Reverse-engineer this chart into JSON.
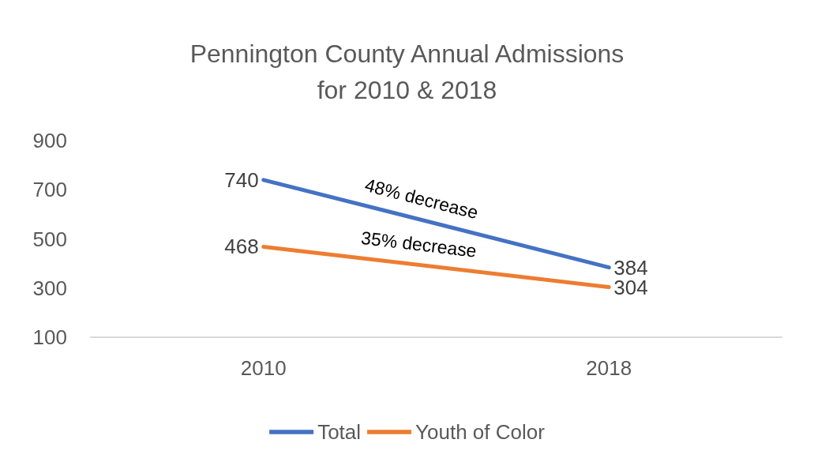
{
  "chart_data": {
    "type": "line",
    "title": "Pennington County Annual Admissions\nfor 2010 & 2018",
    "categories": [
      "2010",
      "2018"
    ],
    "series": [
      {
        "name": "Total",
        "color": "#4472c4",
        "values": [
          740,
          384
        ]
      },
      {
        "name": "Youth of Color",
        "color": "#ed7d31",
        "values": [
          468,
          304
        ]
      }
    ],
    "ylim": [
      100,
      900
    ],
    "yticks": [
      100,
      300,
      500,
      700,
      900
    ],
    "grid": false,
    "legend": "bottom",
    "marker": "none",
    "line_style": "solid",
    "data_labels": true,
    "annotations": [
      "48% decrease",
      "35% decrease"
    ]
  }
}
